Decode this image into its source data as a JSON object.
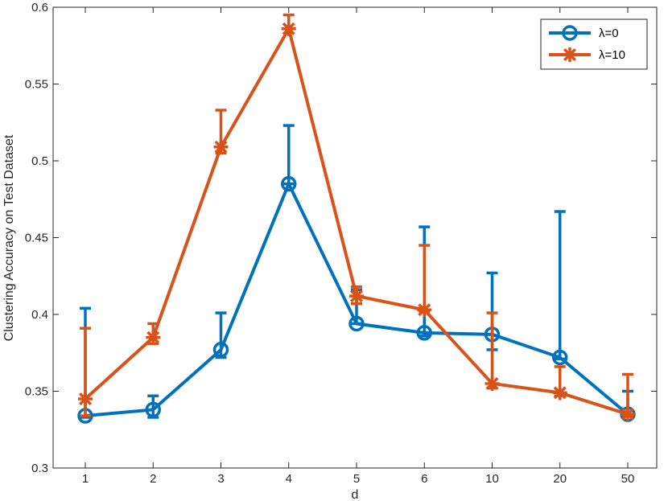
{
  "chart_data": {
    "type": "line",
    "categories": [
      "1",
      "2",
      "3",
      "4",
      "5",
      "6",
      "10",
      "20",
      "50"
    ],
    "xlabel": "d",
    "ylabel": "Clustering Accuracy on Test Dataset",
    "ylim": [
      0.3,
      0.6
    ],
    "yticks": [
      "0.3",
      "0.35",
      "0.4",
      "0.45",
      "0.5",
      "0.55",
      "0.6"
    ],
    "grid": false,
    "legend_position": "top-right",
    "series": [
      {
        "name": "λ=0",
        "color": "#0072BD",
        "marker": "circle",
        "values": [
          0.334,
          0.338,
          0.377,
          0.485,
          0.394,
          0.388,
          0.387,
          0.372,
          0.335
        ],
        "error_low": [
          0.333,
          0.333,
          0.372,
          0.485,
          0.394,
          0.386,
          0.377,
          0.371,
          0.334
        ],
        "error_high": [
          0.404,
          0.347,
          0.401,
          0.523,
          0.416,
          0.457,
          0.427,
          0.467,
          0.35
        ]
      },
      {
        "name": "λ=10",
        "color": "#D95319",
        "marker": "star",
        "values": [
          0.345,
          0.385,
          0.509,
          0.586,
          0.412,
          0.403,
          0.355,
          0.349,
          0.335
        ],
        "error_low": [
          0.334,
          0.381,
          0.505,
          0.586,
          0.407,
          0.402,
          0.352,
          0.347,
          0.334
        ],
        "error_high": [
          0.391,
          0.394,
          0.533,
          0.595,
          0.418,
          0.445,
          0.401,
          0.366,
          0.361
        ]
      }
    ]
  }
}
